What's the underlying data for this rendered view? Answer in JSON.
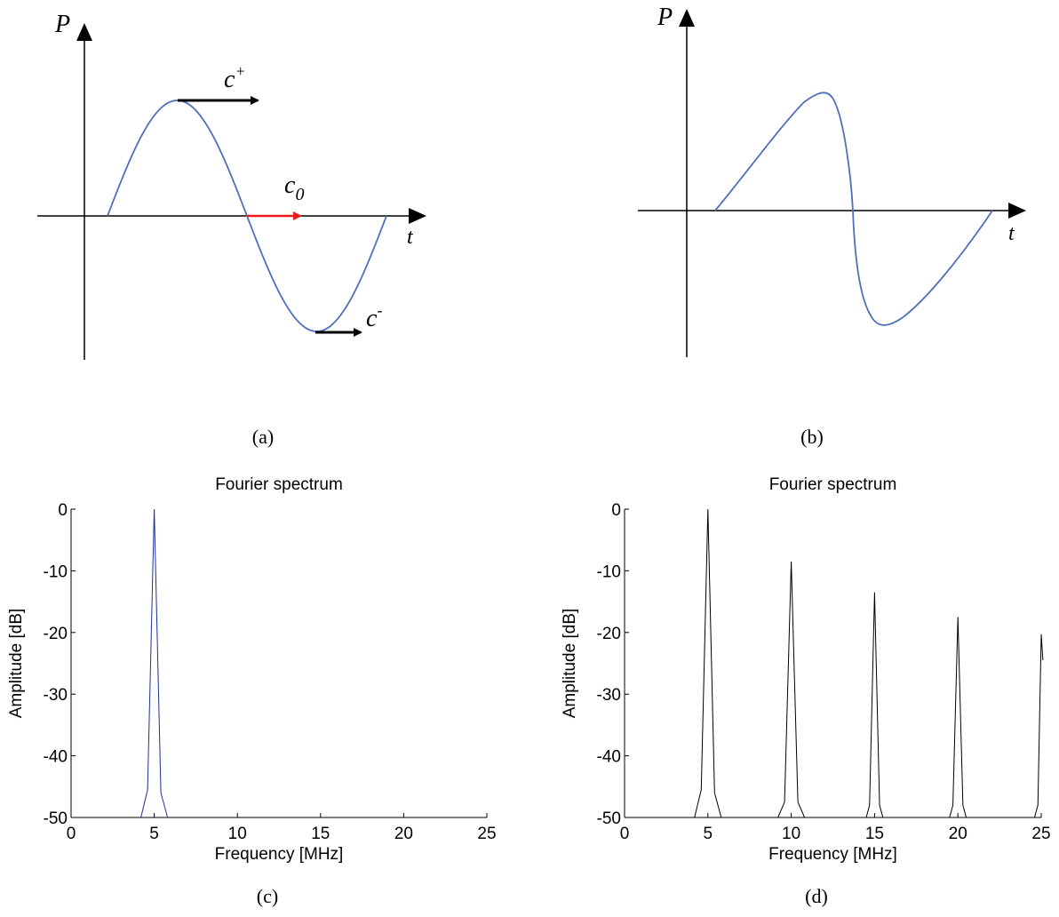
{
  "panels": {
    "a": {
      "caption": "(a)",
      "y_axis_label": "P",
      "x_axis_label": "t",
      "annotations": {
        "c_plus": "c",
        "c_plus_sup": "+",
        "c_zero": "c",
        "c_zero_sub": "0",
        "c_minus": "c",
        "c_minus_sup": "-"
      }
    },
    "b": {
      "caption": "(b)",
      "y_axis_label": "P",
      "x_axis_label": "t"
    },
    "c": {
      "caption": "(c)"
    },
    "d": {
      "caption": "(d)"
    }
  },
  "colors": {
    "sine": "#4f6fb8",
    "spectrum_c": "#1f2f9a",
    "spectrum_d": "#000000",
    "arrow_red": "#ee1c1c",
    "arrow_black": "#000000"
  },
  "chart_data": [
    {
      "type": "line",
      "title": "Fourier spectrum",
      "xlabel": "Frequency [MHz]",
      "ylabel": "Amplitude [dB]",
      "xlim": [
        0,
        25
      ],
      "ylim": [
        -50,
        0
      ],
      "xticks": [
        0,
        5,
        10,
        15,
        20,
        25
      ],
      "yticks": [
        0,
        -10,
        -20,
        -30,
        -40,
        -50
      ],
      "series": [
        {
          "x": [
            4.2,
            4.6,
            5.0,
            5.4,
            5.8
          ],
          "y": [
            -50,
            -45.5,
            0,
            -46,
            -50
          ]
        }
      ]
    },
    {
      "type": "line",
      "title": "Fourier spectrum",
      "xlabel": "Frequency [MHz]",
      "ylabel": "Amplitude [dB]",
      "xlim": [
        0,
        25
      ],
      "ylim": [
        -50,
        0
      ],
      "xticks": [
        0,
        5,
        10,
        15,
        20,
        25
      ],
      "yticks": [
        0,
        -10,
        -20,
        -30,
        -40,
        -50
      ],
      "series": [
        {
          "x": [
            4.2,
            4.6,
            5.0,
            5.4,
            5.8
          ],
          "y": [
            -50,
            -45.5,
            0,
            -46,
            -50
          ]
        },
        {
          "x": [
            9.2,
            9.6,
            10.0,
            10.4,
            10.8
          ],
          "y": [
            -50,
            -47.5,
            -8.5,
            -47.5,
            -50
          ]
        },
        {
          "x": [
            14.5,
            14.7,
            15.0,
            15.3,
            15.5
          ],
          "y": [
            -50,
            -48,
            -13.5,
            -48,
            -50
          ]
        },
        {
          "x": [
            19.5,
            19.7,
            20.0,
            20.3,
            20.5
          ],
          "y": [
            -50,
            -48,
            -17.5,
            -48,
            -50
          ]
        },
        {
          "x": [
            24.6,
            24.8,
            25.0,
            25.1
          ],
          "y": [
            -50,
            -48,
            -20.3,
            -24.5
          ]
        }
      ]
    }
  ]
}
